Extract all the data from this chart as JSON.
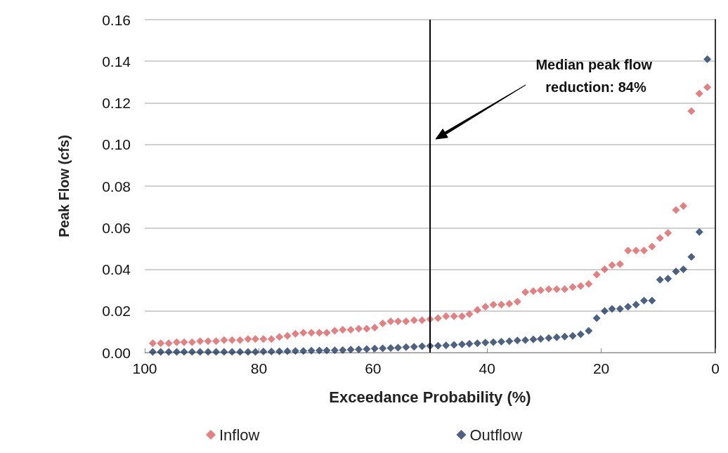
{
  "chart_data": {
    "type": "scatter",
    "xlabel": "Exceedance Probability (%)",
    "ylabel": "Peak Flow (cfs)",
    "x": [
      98.6,
      97.2,
      95.8,
      94.4,
      93.1,
      91.7,
      90.3,
      88.9,
      87.5,
      86.1,
      84.7,
      83.3,
      81.9,
      80.6,
      79.2,
      77.8,
      76.4,
      75.0,
      73.6,
      72.2,
      70.8,
      69.4,
      68.1,
      66.7,
      65.3,
      63.9,
      62.5,
      61.1,
      59.7,
      58.3,
      56.9,
      55.6,
      54.2,
      52.8,
      51.4,
      50.0,
      48.6,
      47.2,
      45.8,
      44.4,
      43.1,
      41.7,
      40.3,
      38.9,
      37.5,
      36.1,
      34.7,
      33.3,
      31.9,
      30.6,
      29.2,
      27.8,
      26.4,
      25.0,
      23.6,
      22.2,
      20.8,
      19.4,
      18.1,
      16.7,
      15.3,
      13.9,
      12.5,
      11.1,
      9.7,
      8.3,
      6.9,
      5.6,
      4.2,
      2.8,
      1.4
    ],
    "series": [
      {
        "name": "Inflow",
        "color": "#e06060",
        "values": [
          0.0045,
          0.0045,
          0.0045,
          0.005,
          0.005,
          0.005,
          0.0055,
          0.0055,
          0.0055,
          0.006,
          0.006,
          0.006,
          0.0065,
          0.0065,
          0.0065,
          0.0065,
          0.0075,
          0.008,
          0.009,
          0.0095,
          0.0095,
          0.0095,
          0.0095,
          0.0105,
          0.011,
          0.011,
          0.0115,
          0.0115,
          0.012,
          0.014,
          0.015,
          0.015,
          0.015,
          0.0155,
          0.0155,
          0.016,
          0.0165,
          0.0175,
          0.0175,
          0.0175,
          0.0185,
          0.0205,
          0.022,
          0.023,
          0.023,
          0.0235,
          0.0245,
          0.029,
          0.0295,
          0.03,
          0.0305,
          0.0305,
          0.0305,
          0.0315,
          0.032,
          0.033,
          0.0375,
          0.04,
          0.042,
          0.0425,
          0.049,
          0.049,
          0.049,
          0.051,
          0.055,
          0.0575,
          0.0685,
          0.0705,
          0.116,
          0.1245,
          0.1275
        ]
      },
      {
        "name": "Outflow",
        "color": "#1f3b63",
        "values": [
          0.0003,
          0.0003,
          0.0003,
          0.0003,
          0.0003,
          0.0003,
          0.0003,
          0.0003,
          0.0003,
          0.0003,
          0.0003,
          0.0003,
          0.0003,
          0.0003,
          0.0005,
          0.0005,
          0.0006,
          0.0007,
          0.0008,
          0.0008,
          0.0009,
          0.001,
          0.001,
          0.0011,
          0.0012,
          0.0014,
          0.0015,
          0.0017,
          0.0019,
          0.002,
          0.0022,
          0.0024,
          0.0026,
          0.0028,
          0.003,
          0.0032,
          0.0033,
          0.0035,
          0.0037,
          0.004,
          0.0042,
          0.0045,
          0.0048,
          0.005,
          0.0052,
          0.0055,
          0.0058,
          0.006,
          0.0063,
          0.0066,
          0.007,
          0.0073,
          0.0077,
          0.008,
          0.0088,
          0.0105,
          0.0165,
          0.02,
          0.021,
          0.021,
          0.022,
          0.023,
          0.025,
          0.025,
          0.035,
          0.0355,
          0.039,
          0.04,
          0.046,
          0.058,
          0.141
        ]
      }
    ],
    "xlim": [
      100,
      0
    ],
    "xticks": [
      0,
      20,
      40,
      60,
      80,
      100
    ],
    "ylim": [
      0,
      0.16
    ],
    "yticks": [
      {
        "value": 0,
        "label": "0.00"
      },
      0.02,
      0.04,
      0.06,
      0.08,
      {
        "value": 0.1,
        "label": "0.10"
      },
      0.12,
      0.14,
      0.16
    ],
    "grid": "y",
    "legend": "bottom",
    "marker": "diamond",
    "ref_lines": [
      {
        "axis": "x",
        "value": 50,
        "color": "#000000"
      }
    ],
    "annotations": [
      "Median peak flow reduction: 84%"
    ]
  }
}
